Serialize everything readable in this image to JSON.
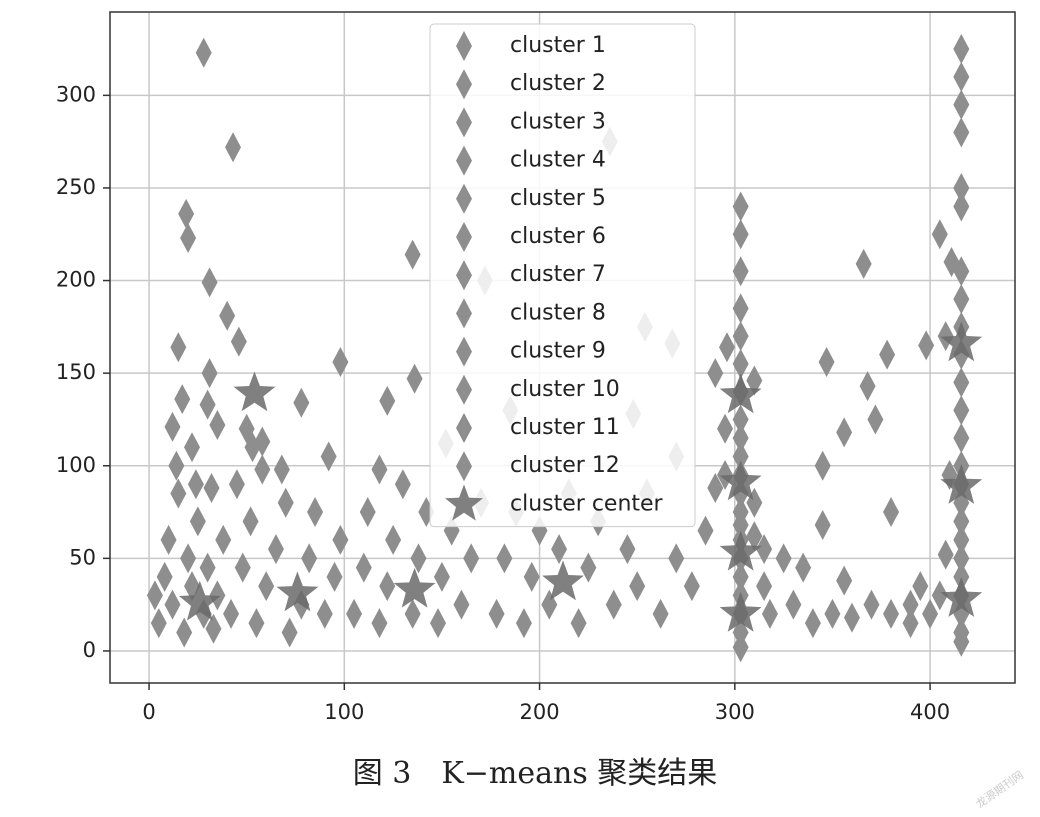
{
  "chart_data": {
    "type": "scatter",
    "xlim": [
      -20,
      443.5
    ],
    "ylim": [
      -17.3,
      345
    ],
    "xticks": [
      0,
      100,
      200,
      300,
      400
    ],
    "yticks": [
      0,
      50,
      100,
      150,
      200,
      250,
      300
    ],
    "grid": true,
    "legend": "top-center",
    "caption": "图 3　K−means 聚类结果",
    "watermark": "龙源期刊网",
    "series": [
      {
        "name": "cluster 1",
        "color": "#8e8e8e",
        "marker": "diamond",
        "x": [
          5,
          8,
          10,
          12,
          15,
          18,
          20,
          22,
          25,
          28,
          30,
          33,
          35,
          38,
          3,
          14,
          24,
          32
        ],
        "values": [
          15,
          40,
          60,
          25,
          85,
          10,
          50,
          35,
          70,
          20,
          45,
          12,
          30,
          60,
          30,
          100,
          90,
          88
        ]
      },
      {
        "name": "cluster 2",
        "color": "#8e8e8e",
        "marker": "diamond",
        "x": [
          28,
          43,
          19,
          20,
          31,
          40,
          46,
          15,
          31,
          17,
          30,
          35,
          12,
          50,
          53,
          22,
          58,
          45
        ],
        "values": [
          323,
          272,
          236,
          223,
          199,
          181,
          167,
          164,
          150,
          136,
          133,
          122,
          121,
          120,
          110,
          110,
          98,
          90
        ]
      },
      {
        "name": "cluster 3",
        "color": "#8e8e8e",
        "marker": "diamond",
        "x": [
          42,
          48,
          52,
          55,
          60,
          65,
          70,
          72,
          78,
          82,
          85,
          90,
          95,
          98,
          78,
          68,
          92,
          98,
          58
        ],
        "values": [
          20,
          45,
          70,
          15,
          35,
          55,
          80,
          10,
          25,
          50,
          75,
          20,
          40,
          60,
          134,
          98,
          105,
          156,
          113
        ]
      },
      {
        "name": "cluster 4",
        "color": "#8e8e8e",
        "marker": "diamond",
        "x": [
          105,
          110,
          112,
          118,
          122,
          125,
          130,
          135,
          138,
          142,
          148,
          150,
          155,
          160,
          165,
          170,
          135,
          136,
          122,
          118,
          172,
          152
        ],
        "values": [
          20,
          45,
          75,
          15,
          35,
          60,
          90,
          20,
          50,
          75,
          15,
          40,
          65,
          25,
          50,
          80,
          214,
          147,
          135,
          98,
          200,
          112
        ]
      },
      {
        "name": "cluster 5",
        "color": "#8e8e8e",
        "marker": "diamond",
        "x": [
          178,
          182,
          188,
          192,
          196,
          200,
          205,
          210,
          215,
          220,
          225,
          230,
          238,
          245,
          250,
          255,
          262,
          270,
          278,
          285,
          236,
          254,
          268,
          185,
          248,
          270,
          290
        ],
        "values": [
          20,
          50,
          75,
          15,
          40,
          65,
          25,
          55,
          85,
          15,
          45,
          70,
          25,
          55,
          35,
          85,
          20,
          50,
          35,
          65,
          275,
          175,
          166,
          130,
          128,
          105,
          150
        ]
      },
      {
        "name": "cluster 6",
        "color": "#8e8e8e",
        "marker": "diamond",
        "x": [
          303,
          303,
          303,
          303,
          303,
          303,
          303,
          303,
          310,
          296,
          295
        ],
        "values": [
          240,
          225,
          205,
          185,
          170,
          155,
          140,
          125,
          146,
          164,
          120
        ]
      },
      {
        "name": "cluster 7",
        "color": "#8e8e8e",
        "marker": "diamond",
        "x": [
          303,
          303,
          303,
          303,
          303,
          295,
          290,
          310
        ],
        "values": [
          115,
          105,
          95,
          85,
          75,
          95,
          88,
          80
        ]
      },
      {
        "name": "cluster 8",
        "color": "#8e8e8e",
        "marker": "diamond",
        "x": [
          303,
          303,
          303,
          303,
          315,
          325,
          335,
          345,
          310
        ],
        "values": [
          68,
          60,
          50,
          40,
          55,
          50,
          45,
          68,
          62
        ]
      },
      {
        "name": "cluster 9",
        "color": "#8e8e8e",
        "marker": "diamond",
        "x": [
          303,
          303,
          303,
          303,
          318,
          330,
          340,
          350,
          360,
          370,
          380,
          390,
          315,
          345,
          347,
          356,
          368,
          372,
          366,
          378,
          380,
          356
        ],
        "values": [
          30,
          20,
          10,
          2,
          20,
          25,
          15,
          20,
          18,
          25,
          20,
          25,
          35,
          100,
          156,
          118,
          143,
          125,
          209,
          160,
          75,
          38
        ]
      },
      {
        "name": "cluster 10",
        "color": "#8e8e8e",
        "marker": "diamond",
        "x": [
          416,
          416,
          416,
          416,
          416,
          416,
          416,
          416,
          416,
          416,
          416,
          405,
          411,
          408,
          398
        ],
        "values": [
          325,
          310,
          295,
          280,
          250,
          240,
          205,
          190,
          175,
          160,
          145,
          225,
          210,
          170,
          165
        ]
      },
      {
        "name": "cluster 11",
        "color": "#8e8e8e",
        "marker": "diamond",
        "x": [
          416,
          416,
          416,
          416,
          416,
          416,
          410
        ],
        "values": [
          130,
          115,
          100,
          90,
          80,
          70,
          95
        ]
      },
      {
        "name": "cluster 12",
        "color": "#8e8e8e",
        "marker": "diamond",
        "x": [
          416,
          416,
          416,
          416,
          416,
          416,
          416,
          405,
          400,
          395,
          408,
          390
        ],
        "values": [
          60,
          50,
          40,
          30,
          20,
          10,
          5,
          30,
          20,
          35,
          52,
          15
        ]
      },
      {
        "name": "cluster center",
        "color": "#6a6a6a",
        "marker": "star",
        "x": [
          26,
          54,
          76,
          136,
          212,
          303,
          303,
          303,
          303,
          416,
          416,
          416
        ],
        "values": [
          26,
          139,
          31,
          33,
          37,
          138,
          91,
          53,
          20,
          166,
          89,
          28
        ]
      }
    ]
  }
}
